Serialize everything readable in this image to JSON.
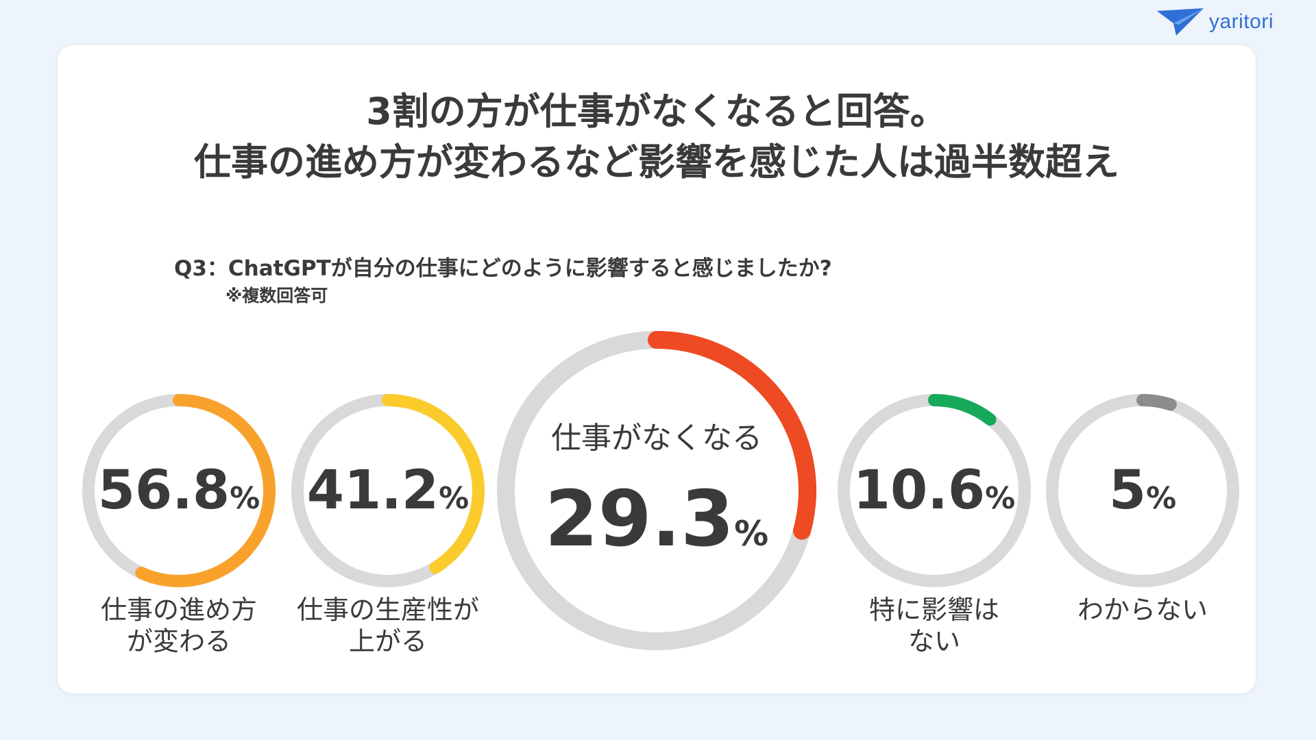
{
  "brand": {
    "name": "yaritori",
    "color": "#2f6fd6"
  },
  "headline": {
    "line1": "3割の方が仕事がなくなると回答。",
    "line2": "仕事の進め方が変わるなど影響を感じた人は過半数超え"
  },
  "question": "Q3：ChatGPTが自分の仕事にどのように影響すると感じましたか?",
  "note": "※複数回答可",
  "chart_data": {
    "type": "pie",
    "title": "",
    "unit": "%",
    "track_color": "#d9d9d9",
    "series": [
      {
        "label": "仕事の進め方が変わる",
        "label_lines": [
          "仕事の進め方",
          "が変わる"
        ],
        "value": 56.8,
        "display": "56.8",
        "color": "#f9a22b"
      },
      {
        "label": "仕事の生産性が上がる",
        "label_lines": [
          "仕事の生産性が",
          "上がる"
        ],
        "value": 41.2,
        "display": "41.2",
        "color": "#fbcb2c"
      },
      {
        "label": "仕事がなくなる",
        "label_lines": [
          "仕事がなくなる"
        ],
        "value": 29.3,
        "display": "29.3",
        "color": "#ee4a23"
      },
      {
        "label": "特に影響はない",
        "label_lines": [
          "特に影響は",
          "ない"
        ],
        "value": 10.6,
        "display": "10.6",
        "color": "#16a95a"
      },
      {
        "label": "わからない",
        "label_lines": [
          "わからない"
        ],
        "value": 5,
        "display": "5",
        "color": "#8c8c8c"
      }
    ]
  }
}
